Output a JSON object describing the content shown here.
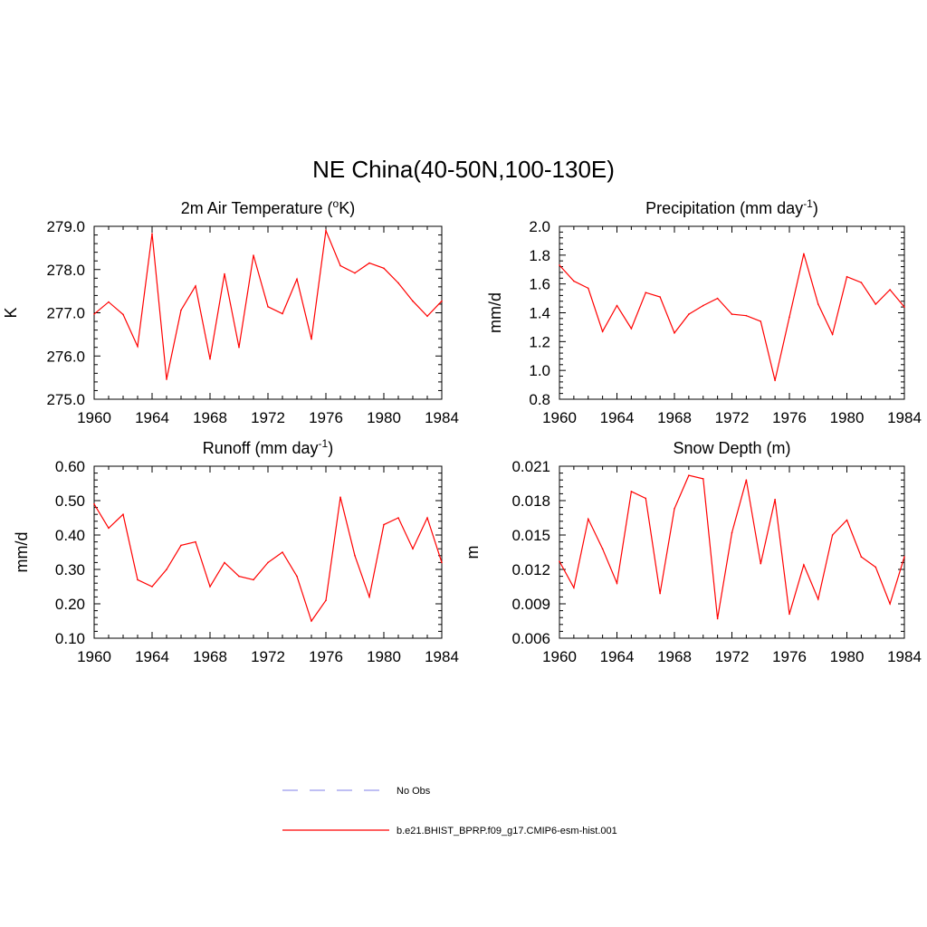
{
  "main_title": "NE China(40-50N,100-130E)",
  "legend": {
    "entries": [
      {
        "label": "No Obs",
        "color": "#9999ee",
        "dashed": true
      },
      {
        "label": "b.e21.BHIST_BPRP.f09_g17.CMIP6-esm-hist.001",
        "color": "#ff0000",
        "dashed": false
      }
    ]
  },
  "chart_data": [
    {
      "type": "line",
      "title": "2m Air Temperature (",
      "title_sup": "o",
      "title_after": "K)",
      "ylabel": "K",
      "xlim": [
        1960,
        1984
      ],
      "ylim": [
        275.0,
        279.0
      ],
      "xticks": [
        "1960",
        "1964",
        "1968",
        "1972",
        "1976",
        "1980",
        "1984"
      ],
      "yticks": [
        "275.0",
        "276.0",
        "277.0",
        "278.0",
        "279.0"
      ],
      "series": [
        {
          "color": "#ff0000",
          "x": [
            1960,
            1961,
            1962,
            1963,
            1964,
            1965,
            1966,
            1967,
            1968,
            1969,
            1970,
            1971,
            1972,
            1973,
            1974,
            1975,
            1976,
            1977,
            1978,
            1979,
            1980,
            1981,
            1982,
            1983,
            1984
          ],
          "values": [
            276.97,
            277.25,
            276.96,
            276.22,
            278.83,
            275.46,
            277.06,
            277.62,
            275.93,
            277.9,
            276.2,
            278.33,
            277.14,
            276.98,
            277.78,
            276.39,
            278.9,
            278.09,
            277.92,
            278.15,
            278.03,
            277.69,
            277.27,
            276.92,
            277.27
          ]
        }
      ]
    },
    {
      "type": "line",
      "title": "Precipitation (mm day",
      "title_sup": "-1",
      "title_after": ")",
      "ylabel": "mm/d",
      "xlim": [
        1960,
        1984
      ],
      "ylim": [
        0.8,
        2.0
      ],
      "xticks": [
        "1960",
        "1964",
        "1968",
        "1972",
        "1976",
        "1980",
        "1984"
      ],
      "yticks": [
        "0.8",
        "1.0",
        "1.2",
        "1.4",
        "1.6",
        "1.8",
        "2.0"
      ],
      "series": [
        {
          "color": "#ff0000",
          "x": [
            1960,
            1961,
            1962,
            1963,
            1964,
            1965,
            1966,
            1967,
            1968,
            1969,
            1970,
            1971,
            1972,
            1973,
            1974,
            1975,
            1976,
            1977,
            1978,
            1979,
            1980,
            1981,
            1982,
            1983,
            1984
          ],
          "values": [
            1.73,
            1.62,
            1.57,
            1.27,
            1.45,
            1.29,
            1.54,
            1.51,
            1.26,
            1.39,
            1.45,
            1.5,
            1.39,
            1.38,
            1.34,
            0.93,
            1.37,
            1.81,
            1.46,
            1.25,
            1.65,
            1.61,
            1.46,
            1.56,
            1.44
          ]
        }
      ]
    },
    {
      "type": "line",
      "title": "Runoff (mm day",
      "title_sup": "-1",
      "title_after": ")",
      "ylabel": "mm/d",
      "xlim": [
        1960,
        1984
      ],
      "ylim": [
        0.1,
        0.6
      ],
      "xticks": [
        "1960",
        "1964",
        "1968",
        "1972",
        "1976",
        "1980",
        "1984"
      ],
      "yticks": [
        "0.10",
        "0.20",
        "0.30",
        "0.40",
        "0.50",
        "0.60"
      ],
      "series": [
        {
          "color": "#ff0000",
          "x": [
            1960,
            1961,
            1962,
            1963,
            1964,
            1965,
            1966,
            1967,
            1968,
            1969,
            1970,
            1971,
            1972,
            1973,
            1974,
            1975,
            1976,
            1977,
            1978,
            1979,
            1980,
            1981,
            1982,
            1983,
            1984
          ],
          "values": [
            0.49,
            0.42,
            0.46,
            0.27,
            0.25,
            0.3,
            0.37,
            0.38,
            0.25,
            0.32,
            0.28,
            0.27,
            0.32,
            0.35,
            0.28,
            0.15,
            0.21,
            0.51,
            0.34,
            0.22,
            0.43,
            0.45,
            0.36,
            0.45,
            0.32
          ]
        }
      ]
    },
    {
      "type": "line",
      "title": "Snow Depth (m)",
      "title_sup": "",
      "title_after": "",
      "ylabel": "m",
      "xlim": [
        1960,
        1984
      ],
      "ylim": [
        0.006,
        0.021
      ],
      "xticks": [
        "1960",
        "1964",
        "1968",
        "1972",
        "1976",
        "1980",
        "1984"
      ],
      "yticks": [
        "0.006",
        "0.009",
        "0.012",
        "0.015",
        "0.018",
        "0.021"
      ],
      "series": [
        {
          "color": "#ff0000",
          "x": [
            1960,
            1961,
            1962,
            1963,
            1964,
            1965,
            1966,
            1967,
            1968,
            1969,
            1970,
            1971,
            1972,
            1973,
            1974,
            1975,
            1976,
            1977,
            1978,
            1979,
            1980,
            1981,
            1982,
            1983,
            1984
          ],
          "values": [
            0.0127,
            0.0104,
            0.0164,
            0.0138,
            0.0108,
            0.0188,
            0.0182,
            0.0099,
            0.0173,
            0.0202,
            0.0199,
            0.0077,
            0.0152,
            0.0198,
            0.0125,
            0.0181,
            0.0081,
            0.0124,
            0.0094,
            0.015,
            0.0163,
            0.0131,
            0.0122,
            0.009,
            0.0131
          ]
        }
      ]
    }
  ]
}
